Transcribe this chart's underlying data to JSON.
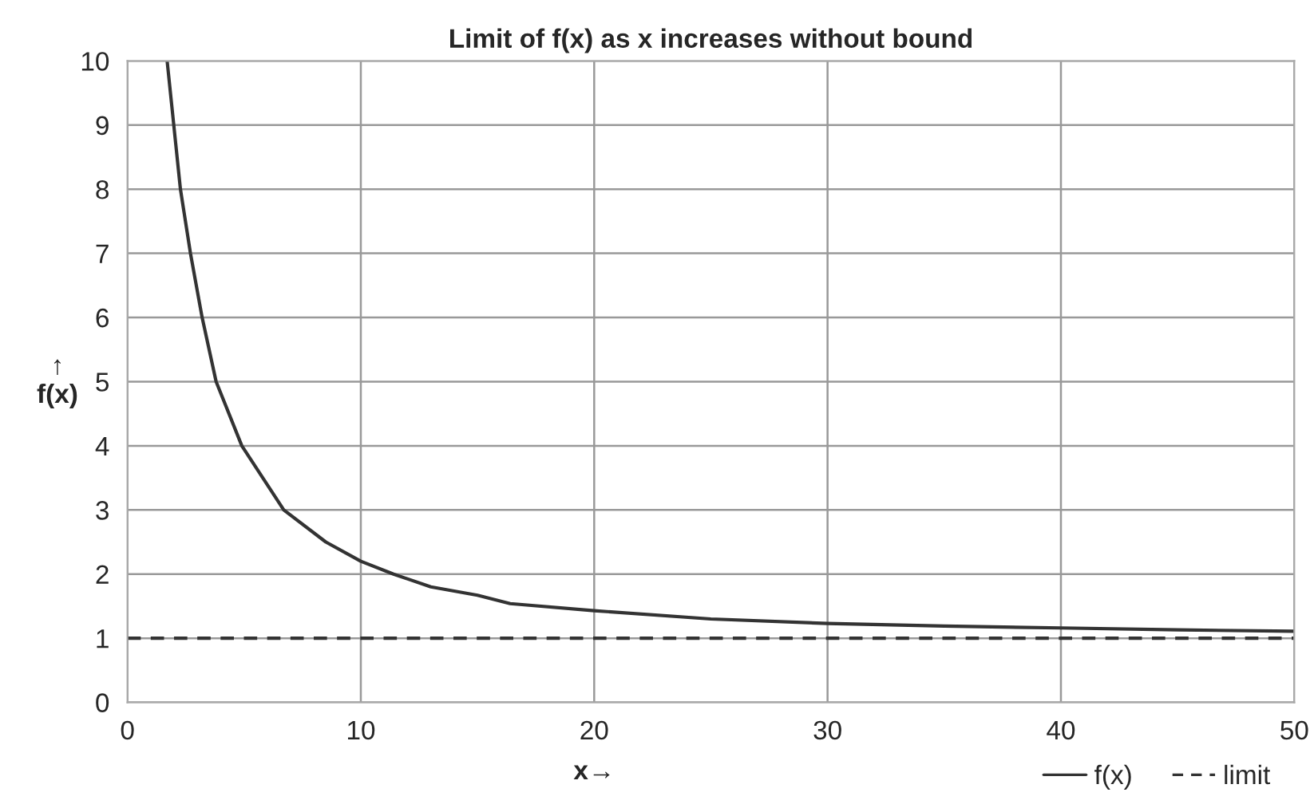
{
  "chart_data": {
    "type": "line",
    "title": "Limit of f(x) as x increases without bound",
    "xlabel": "x→",
    "ylabel": "↑\nf(x)",
    "xlim": [
      0,
      50
    ],
    "ylim": [
      0,
      10
    ],
    "xticks": [
      0,
      10,
      20,
      30,
      40,
      50
    ],
    "yticks": [
      0,
      1,
      2,
      3,
      4,
      5,
      6,
      7,
      8,
      9,
      10
    ],
    "grid": true,
    "legend": "bottom right",
    "marker": "none",
    "series": [
      {
        "name": "f(x)",
        "color": "#333333",
        "line_style": "solid",
        "x": [
          1.7,
          2.27,
          2.7,
          3.2,
          3.8,
          4.9,
          6.7,
          8.5,
          10,
          11.4,
          13,
          15,
          16.4,
          20,
          25,
          30,
          35,
          40,
          45,
          50
        ],
        "values": [
          10,
          8,
          7,
          6,
          5,
          4,
          3,
          2.5,
          2.2,
          2,
          1.8,
          1.67,
          1.54,
          1.43,
          1.3,
          1.23,
          1.19,
          1.16,
          1.13,
          1.11
        ]
      },
      {
        "name": "limit",
        "color": "#333333",
        "line_style": "dashed",
        "x": [
          0,
          50
        ],
        "values": [
          1,
          1
        ]
      }
    ]
  }
}
